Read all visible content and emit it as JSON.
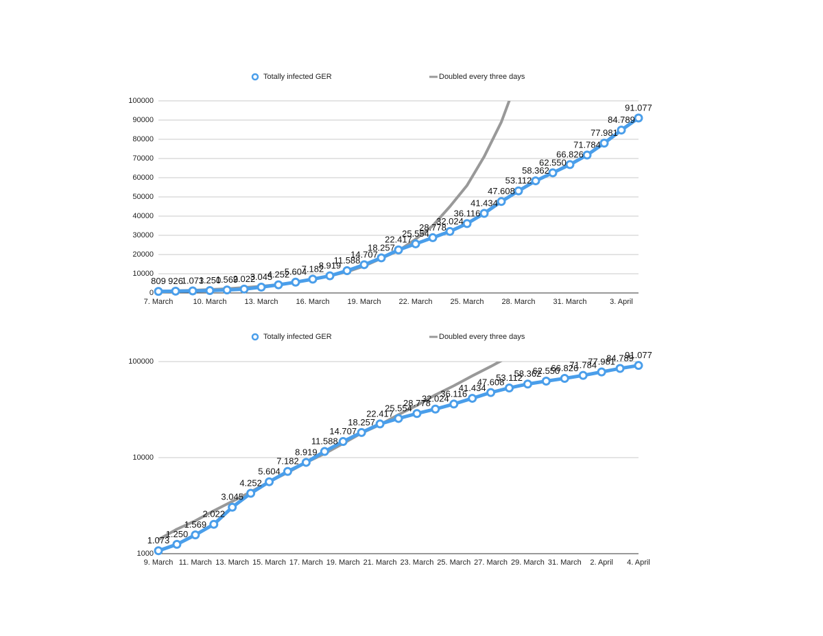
{
  "chart_data": [
    {
      "type": "line",
      "legend": "top",
      "grid": true,
      "log_scale": false,
      "categories": [
        "7. March",
        null,
        null,
        "10. March",
        null,
        null,
        "13. March",
        null,
        null,
        "16. March",
        null,
        null,
        "19. March",
        null,
        null,
        "22. March",
        null,
        null,
        "25. March",
        null,
        null,
        "28. March",
        null,
        null,
        "31. March",
        null,
        null,
        "3. April",
        null
      ],
      "ylim": [
        0,
        100000
      ],
      "yticks": [
        0,
        10000,
        20000,
        30000,
        40000,
        50000,
        60000,
        70000,
        80000,
        90000,
        100000
      ],
      "series": [
        {
          "name": "Totally infected GER",
          "color": "#4a9eea",
          "values": [
            809,
            926,
            1073,
            1250,
            1569,
            2022,
            3045,
            4252,
            5604,
            7182,
            8919,
            11588,
            14707,
            18257,
            22417,
            25554,
            28778,
            32024,
            36116,
            41434,
            47608,
            53112,
            58362,
            62550,
            66826,
            71784,
            77981,
            84789,
            91077
          ],
          "value_labels": [
            "809",
            "926",
            "1.073",
            "1.250",
            "1.569",
            "2.022",
            "3.045",
            "4.252",
            "5.604",
            "7.182",
            "8.919",
            "11.588",
            "14.707",
            "18.257",
            "22.417",
            "25.554",
            "28.778",
            "32.024",
            "36.116",
            "41.434",
            "47.608",
            "53.112",
            "58.362",
            "62.550",
            "66.826",
            "71.784",
            "77.981",
            "84.789",
            "91.077"
          ]
        },
        {
          "name": "Doubled every three days",
          "color": "#999999",
          "values": [
            900,
            1100,
            1400,
            1800,
            2200,
            2800,
            3500,
            4400,
            5600,
            7000,
            8900,
            11000,
            14000,
            18000,
            22000,
            28000,
            35000,
            45000,
            56000,
            71000,
            89000,
            113000,
            null,
            null,
            null,
            null,
            null,
            null,
            null
          ]
        }
      ]
    },
    {
      "type": "line",
      "legend": "top",
      "grid": true,
      "log_scale": true,
      "categories": [
        "9. March",
        null,
        "11. March",
        null,
        "13. March",
        null,
        "15. March",
        null,
        "17. March",
        null,
        "19. March",
        null,
        "21. March",
        null,
        "23. March",
        null,
        "25. March",
        null,
        "27. March",
        null,
        "29. March",
        null,
        "31. March",
        null,
        "2. April",
        null,
        "4. April"
      ],
      "ylim": [
        1000,
        100000
      ],
      "yticks": [
        1000,
        10000,
        100000
      ],
      "series": [
        {
          "name": "Totally infected GER",
          "color": "#4a9eea",
          "values": [
            1073,
            1250,
            1569,
            2022,
            3045,
            4252,
            5604,
            7182,
            8919,
            11588,
            14707,
            18257,
            22417,
            25554,
            28778,
            32024,
            36116,
            41434,
            47608,
            53112,
            58362,
            62550,
            66826,
            71784,
            77981,
            84789,
            91077
          ],
          "value_labels": [
            "1.073",
            "1.250",
            "1.569",
            "2.022",
            "3.045",
            "4.252",
            "5.604",
            "7.182",
            "8.919",
            "11.588",
            "14.707",
            "18.257",
            "22.417",
            "25.554",
            "28.778",
            "32.024",
            "36.116",
            "41.434",
            "47.608",
            "53.112",
            "58.362",
            "62.550",
            "66.826",
            "71.784",
            "77.981",
            "84.789",
            "91.077"
          ]
        },
        {
          "name": "Doubled every three days",
          "color": "#999999",
          "values": [
            1400,
            1800,
            2200,
            2800,
            3500,
            4400,
            5600,
            7000,
            8900,
            11000,
            14000,
            18000,
            22000,
            28000,
            35000,
            45000,
            56000,
            71000,
            89000,
            113000,
            null,
            null,
            null,
            null,
            null,
            null,
            null
          ]
        }
      ]
    }
  ]
}
